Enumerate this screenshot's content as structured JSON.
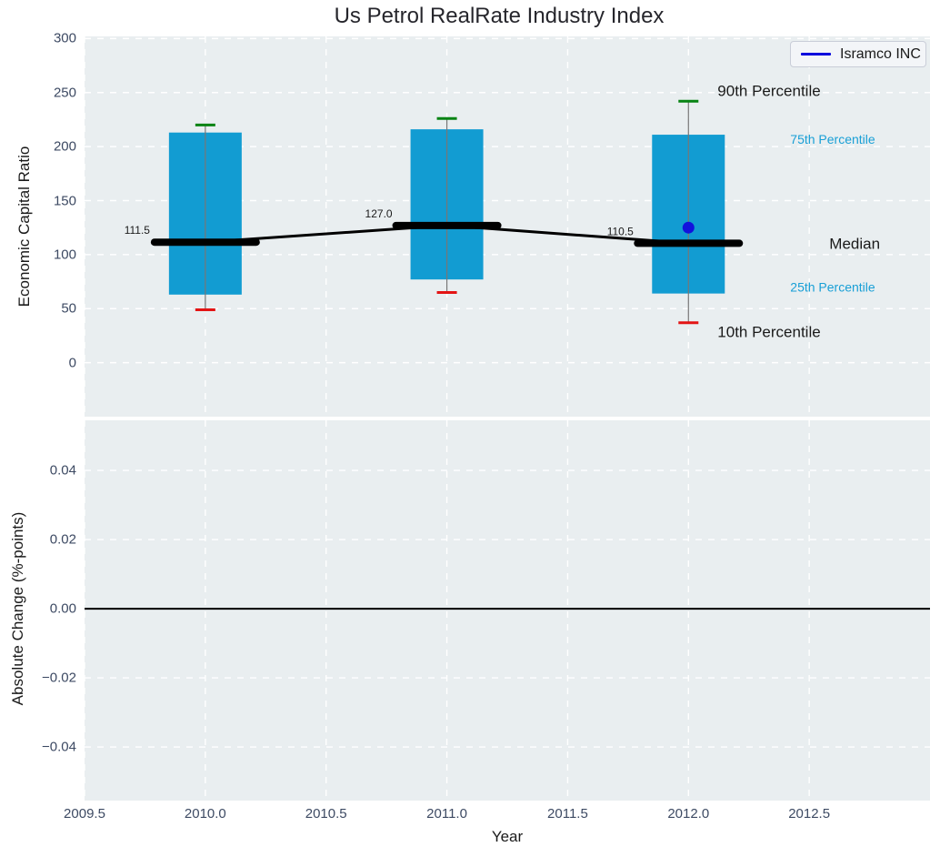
{
  "figure": {
    "kind": "dual-subplot statistical chart",
    "background": "#ffffff"
  },
  "colors": {
    "axes_bg": "#e9eef0",
    "grid": "#ffffff",
    "box_fill": "#129cd2",
    "whisker": "#777777",
    "cap_90": "#078313",
    "cap_10": "#e31414",
    "median_line": "#000000",
    "marker": "#1212dd",
    "legend_line": "#0000dd",
    "tick_text": "#3d4a63",
    "percentile_text": "#189fd6",
    "text": "#1a1a1a"
  },
  "chart_data": [
    {
      "type": "box-percentile-timeseries",
      "title": "Us Petrol RealRate Industry Index",
      "ylabel": "Economic Capital Ratio",
      "grid": true,
      "legend_position": "upper right",
      "xlim": [
        2009.5,
        2013.0
      ],
      "ylim": [
        -50,
        302
      ],
      "x": [
        2010,
        2011,
        2012
      ],
      "p90": [
        220,
        226,
        242
      ],
      "p75": [
        213,
        216,
        211
      ],
      "median": [
        111.5,
        127.0,
        110.5
      ],
      "p25": [
        63,
        77,
        64
      ],
      "p10": [
        49,
        65,
        37
      ],
      "median_labels": [
        "111.5",
        "127.0",
        "110.5"
      ],
      "yticks": [
        0,
        50,
        100,
        150,
        200,
        250,
        300
      ],
      "ytick_labels": [
        "0",
        "50",
        "100",
        "150",
        "200",
        "250",
        "300"
      ],
      "xticks": [
        2009.5,
        2010,
        2010.5,
        2011,
        2011.5,
        2012,
        2012.5
      ],
      "series": [
        {
          "name": "Isramco INC",
          "x": [
            2012
          ],
          "y": [
            125
          ]
        }
      ],
      "annotations": [
        {
          "key": "p90",
          "text": "90th Percentile"
        },
        {
          "key": "p75",
          "text": "75th Percentile"
        },
        {
          "key": "median",
          "text": "Median"
        },
        {
          "key": "p25",
          "text": "25th Percentile"
        },
        {
          "key": "p10",
          "text": "10th Percentile"
        }
      ]
    },
    {
      "type": "line",
      "ylabel": "Absolute Change (%-points)",
      "xlabel": "Year",
      "grid": true,
      "xlim": [
        2009.5,
        2013.0
      ],
      "ylim": [
        -0.0555,
        0.0545
      ],
      "yticks": [
        0.04,
        0.02,
        0,
        -0.02,
        -0.04
      ],
      "ytick_labels": [
        "0.04",
        "0.02",
        "0.00",
        "−0.02",
        "−0.04"
      ],
      "xticks": [
        2009.5,
        2010,
        2010.5,
        2011,
        2011.5,
        2012,
        2012.5
      ],
      "xtick_labels": [
        "2009.5",
        "2010.0",
        "2010.5",
        "2011.0",
        "2011.5",
        "2012.0",
        "2012.5"
      ],
      "zero_line": 0
    }
  ]
}
